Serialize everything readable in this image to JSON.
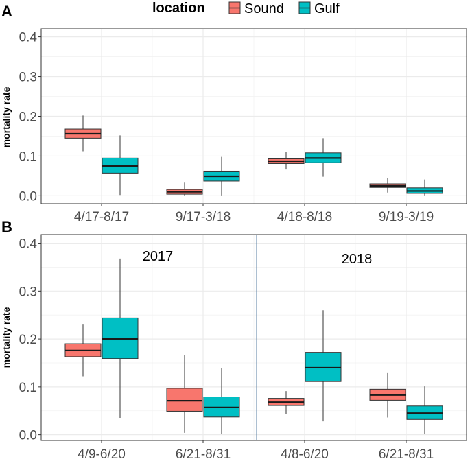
{
  "legend": {
    "title": "location",
    "items": [
      {
        "label": "Sound",
        "color": "#F8766D"
      },
      {
        "label": "Gulf",
        "color": "#00BFC4"
      }
    ]
  },
  "chart_data": [
    {
      "panel_label": "A",
      "type": "box",
      "ylabel": "mortality rate",
      "ylim": [
        -0.02,
        0.42
      ],
      "yticks": [
        0.0,
        0.1,
        0.2,
        0.3,
        0.4
      ],
      "ytick_labels": [
        "0.0",
        "0.1",
        "0.2",
        "0.3",
        "0.4"
      ],
      "categories": [
        "4/17-8/17",
        "9/17-3/18",
        "4/18-8/18",
        "9/19-3/19"
      ],
      "grid": true,
      "series": [
        {
          "name": "Sound",
          "color": "#F8766D",
          "boxes": [
            {
              "min": 0.112,
              "q1": 0.145,
              "median": 0.156,
              "q3": 0.168,
              "max": 0.202
            },
            {
              "min": 0.001,
              "q1": 0.004,
              "median": 0.01,
              "q3": 0.016,
              "max": 0.033
            },
            {
              "min": 0.066,
              "q1": 0.081,
              "median": 0.087,
              "q3": 0.093,
              "max": 0.11
            },
            {
              "min": 0.008,
              "q1": 0.021,
              "median": 0.025,
              "q3": 0.03,
              "max": 0.045
            }
          ]
        },
        {
          "name": "Gulf",
          "color": "#00BFC4",
          "boxes": [
            {
              "min": 0.002,
              "q1": 0.057,
              "median": 0.075,
              "q3": 0.095,
              "max": 0.152
            },
            {
              "min": 0.001,
              "q1": 0.037,
              "median": 0.049,
              "q3": 0.062,
              "max": 0.098
            },
            {
              "min": 0.048,
              "q1": 0.083,
              "median": 0.095,
              "q3": 0.108,
              "max": 0.145
            },
            {
              "min": 0.001,
              "q1": 0.006,
              "median": 0.012,
              "q3": 0.02,
              "max": 0.041
            }
          ]
        }
      ]
    },
    {
      "panel_label": "B",
      "type": "box",
      "ylabel": "mortality rate",
      "ylim": [
        -0.012,
        0.418
      ],
      "yticks": [
        0.0,
        0.1,
        0.2,
        0.3,
        0.4
      ],
      "ytick_labels": [
        "0.0",
        "0.1",
        "0.2",
        "0.3",
        "0.4"
      ],
      "categories": [
        "4/9-6/20",
        "6/21-8/31",
        "4/8-6/20",
        "6/21-8/31"
      ],
      "grid": true,
      "annotations": [
        {
          "text": "2017",
          "near_category": 0.5
        },
        {
          "text": "2018",
          "near_category": 2.5
        }
      ],
      "separator_between": [
        1,
        2
      ],
      "series": [
        {
          "name": "Sound",
          "color": "#F8766D",
          "boxes": [
            {
              "min": 0.122,
              "q1": 0.163,
              "median": 0.176,
              "q3": 0.19,
              "max": 0.23
            },
            {
              "min": 0.004,
              "q1": 0.049,
              "median": 0.071,
              "q3": 0.097,
              "max": 0.167
            },
            {
              "min": 0.043,
              "q1": 0.061,
              "median": 0.068,
              "q3": 0.076,
              "max": 0.091
            },
            {
              "min": 0.036,
              "q1": 0.072,
              "median": 0.083,
              "q3": 0.095,
              "max": 0.13
            }
          ]
        },
        {
          "name": "Gulf",
          "color": "#00BFC4",
          "boxes": [
            {
              "min": 0.035,
              "q1": 0.159,
              "median": 0.2,
              "q3": 0.244,
              "max": 0.368
            },
            {
              "min": 0.001,
              "q1": 0.037,
              "median": 0.057,
              "q3": 0.079,
              "max": 0.14
            },
            {
              "min": 0.028,
              "q1": 0.111,
              "median": 0.14,
              "q3": 0.172,
              "max": 0.26
            },
            {
              "min": 0.001,
              "q1": 0.032,
              "median": 0.045,
              "q3": 0.06,
              "max": 0.101
            }
          ]
        }
      ]
    }
  ]
}
